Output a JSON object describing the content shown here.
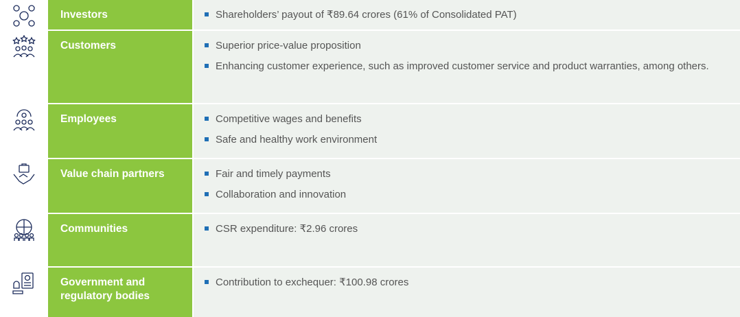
{
  "rows": [
    {
      "label": "Investors",
      "items": [
        "Shareholders’ payout of ₹89.64 crores (61% of Consolidated PAT)"
      ]
    },
    {
      "label": "Customers",
      "items": [
        "Superior price-value proposition",
        "Enhancing customer experience, such as improved customer service and product warranties, among others."
      ]
    },
    {
      "label": "Employees",
      "items": [
        "Competitive wages and benefits",
        "Safe and healthy work environment"
      ]
    },
    {
      "label": "Value chain partners",
      "items": [
        "Fair and timely payments",
        "Collaboration and innovation"
      ]
    },
    {
      "label": "Communities",
      "items": [
        "CSR expenditure: ₹2.96 crores"
      ]
    },
    {
      "label": "Government and regulatory bodies",
      "items": [
        "Contribution to exchequer: ₹100.98 crores"
      ]
    }
  ]
}
